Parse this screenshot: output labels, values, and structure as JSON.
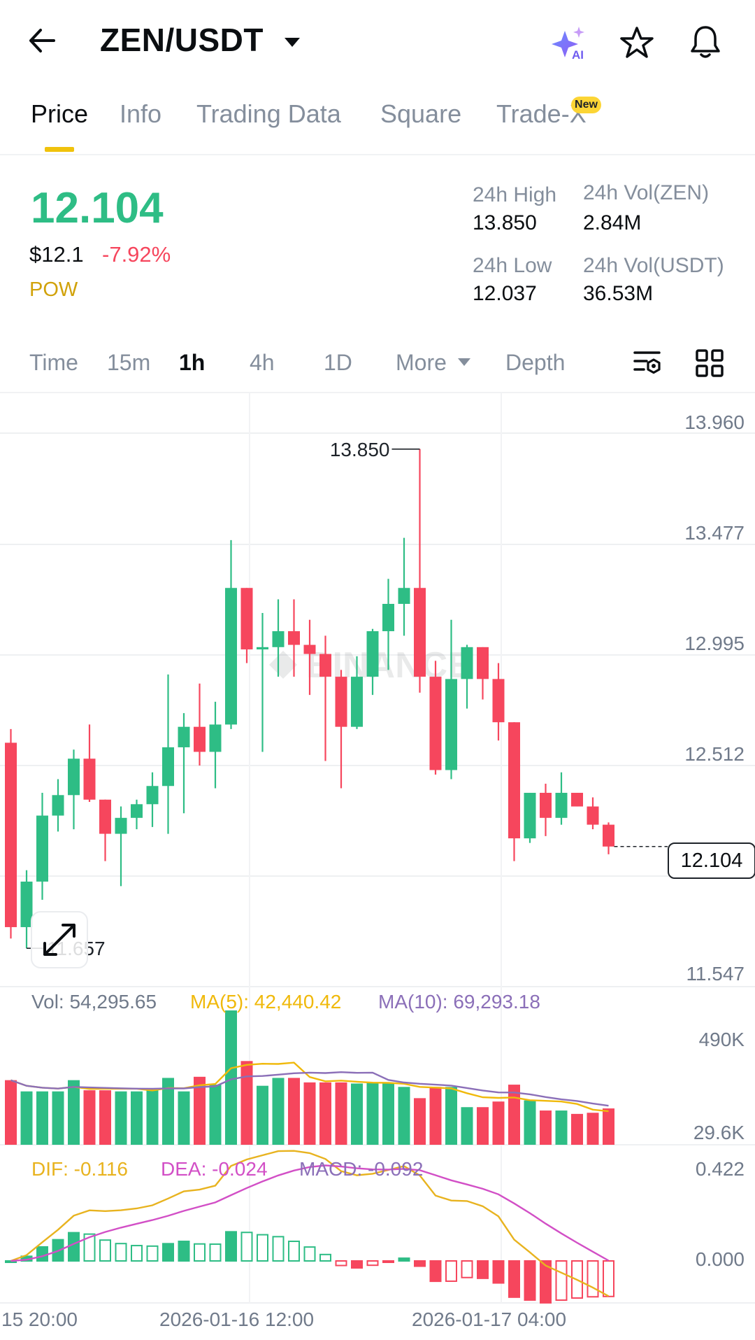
{
  "header": {
    "pair": "ZEN/USDT",
    "ai_badge": "AI"
  },
  "tabs": [
    {
      "label": "Price",
      "active": true
    },
    {
      "label": "Info",
      "active": false
    },
    {
      "label": "Trading Data",
      "active": false
    },
    {
      "label": "Square",
      "active": false
    },
    {
      "label": "Trade-X",
      "active": false,
      "badge": "New"
    }
  ],
  "ticker": {
    "last_price": "12.104",
    "usd_price": "$12.1",
    "change_pct": "-7.92%",
    "tag": "POW",
    "high_label": "24h High",
    "high_value": "13.850",
    "low_label": "24h Low",
    "low_value": "12.037",
    "vol_base_label": "24h Vol(ZEN)",
    "vol_base_value": "2.84M",
    "vol_quote_label": "24h Vol(USDT)",
    "vol_quote_value": "36.53M"
  },
  "intervals": [
    {
      "label": "Time",
      "active": false
    },
    {
      "label": "15m",
      "active": false
    },
    {
      "label": "1h",
      "active": true
    },
    {
      "label": "4h",
      "active": false
    },
    {
      "label": "1D",
      "active": false
    },
    {
      "label": "More",
      "active": false
    },
    {
      "label": "Depth",
      "active": false
    }
  ],
  "chart": {
    "price_axis": [
      "13.960",
      "13.477",
      "12.995",
      "12.512",
      "12.104",
      "11.547"
    ],
    "current_price_tag": "12.104",
    "high_marker": "13.850",
    "low_marker": "11.657",
    "watermark": "BINANCE",
    "volume_legend": {
      "vol": "Vol: 54,295.65",
      "ma5": "MA(5): 42,440.42",
      "ma10": "MA(10): 69,293.18"
    },
    "volume_axis": [
      "490K",
      "29.6K"
    ],
    "macd_legend": {
      "dif": "DIF: -0.116",
      "dea": "DEA: -0.024",
      "macd": "MACD: -0.092"
    },
    "macd_axis": [
      "0.422",
      "0.000"
    ],
    "time_axis": [
      "15 20:00",
      "2026-01-16 12:00",
      "2026-01-17 04:00"
    ],
    "colors": {
      "up": "#2ebd85",
      "down": "#f6465d",
      "ma5": "#f0b90b",
      "ma10": "#8b6fb8",
      "dif": "#e8b31f",
      "dea": "#d24fc6"
    }
  },
  "chart_data": {
    "type": "candlestick",
    "interval": "1h",
    "candles": [
      {
        "o": 12.56,
        "h": 12.62,
        "l": 11.7,
        "c": 11.75
      },
      {
        "o": 11.75,
        "h": 12.0,
        "l": 11.657,
        "c": 11.95
      },
      {
        "o": 11.95,
        "h": 12.34,
        "l": 11.87,
        "c": 12.24
      },
      {
        "o": 12.24,
        "h": 12.4,
        "l": 12.17,
        "c": 12.33
      },
      {
        "o": 12.33,
        "h": 12.53,
        "l": 12.18,
        "c": 12.49
      },
      {
        "o": 12.49,
        "h": 12.64,
        "l": 12.3,
        "c": 12.31
      },
      {
        "o": 12.31,
        "h": 12.31,
        "l": 12.04,
        "c": 12.16
      },
      {
        "o": 12.16,
        "h": 12.28,
        "l": 11.93,
        "c": 12.23
      },
      {
        "o": 12.23,
        "h": 12.31,
        "l": 12.18,
        "c": 12.29
      },
      {
        "o": 12.29,
        "h": 12.43,
        "l": 12.19,
        "c": 12.37
      },
      {
        "o": 12.37,
        "h": 12.86,
        "l": 12.16,
        "c": 12.54
      },
      {
        "o": 12.54,
        "h": 12.69,
        "l": 12.25,
        "c": 12.63
      },
      {
        "o": 12.63,
        "h": 12.82,
        "l": 12.46,
        "c": 12.52
      },
      {
        "o": 12.52,
        "h": 12.74,
        "l": 12.36,
        "c": 12.64
      },
      {
        "o": 12.64,
        "h": 13.45,
        "l": 12.62,
        "c": 13.24
      },
      {
        "o": 13.24,
        "h": 13.24,
        "l": 12.91,
        "c": 12.97
      },
      {
        "o": 12.97,
        "h": 13.13,
        "l": 12.52,
        "c": 12.98
      },
      {
        "o": 12.98,
        "h": 13.19,
        "l": 12.85,
        "c": 13.05
      },
      {
        "o": 13.05,
        "h": 13.19,
        "l": 12.85,
        "c": 12.99
      },
      {
        "o": 12.99,
        "h": 13.1,
        "l": 12.77,
        "c": 12.95
      },
      {
        "o": 12.95,
        "h": 13.03,
        "l": 12.48,
        "c": 12.85
      },
      {
        "o": 12.85,
        "h": 12.88,
        "l": 12.36,
        "c": 12.63
      },
      {
        "o": 12.63,
        "h": 12.94,
        "l": 12.62,
        "c": 12.85
      },
      {
        "o": 12.85,
        "h": 13.06,
        "l": 12.77,
        "c": 13.05
      },
      {
        "o": 13.05,
        "h": 13.28,
        "l": 12.88,
        "c": 13.17
      },
      {
        "o": 13.17,
        "h": 13.46,
        "l": 13.03,
        "c": 13.24
      },
      {
        "o": 13.24,
        "h": 13.85,
        "l": 12.78,
        "c": 12.85
      },
      {
        "o": 12.85,
        "h": 12.92,
        "l": 12.42,
        "c": 12.44
      },
      {
        "o": 12.44,
        "h": 13.1,
        "l": 12.4,
        "c": 12.84
      },
      {
        "o": 12.84,
        "h": 12.99,
        "l": 12.71,
        "c": 12.98
      },
      {
        "o": 12.98,
        "h": 12.98,
        "l": 12.75,
        "c": 12.84
      },
      {
        "o": 12.84,
        "h": 12.91,
        "l": 12.57,
        "c": 12.65
      },
      {
        "o": 12.65,
        "h": 12.65,
        "l": 12.04,
        "c": 12.14
      },
      {
        "o": 12.14,
        "h": 12.34,
        "l": 12.12,
        "c": 12.34
      },
      {
        "o": 12.34,
        "h": 12.38,
        "l": 12.15,
        "c": 12.23
      },
      {
        "o": 12.23,
        "h": 12.43,
        "l": 12.2,
        "c": 12.34
      },
      {
        "o": 12.34,
        "h": 12.34,
        "l": 12.28,
        "c": 12.28
      },
      {
        "o": 12.28,
        "h": 12.32,
        "l": 12.18,
        "c": 12.2
      },
      {
        "o": 12.2,
        "h": 12.21,
        "l": 12.07,
        "c": 12.104
      }
    ],
    "volume": [
      180000,
      130000,
      130000,
      130000,
      180000,
      135000,
      135000,
      130000,
      130000,
      140000,
      190000,
      130000,
      195000,
      160000,
      490000,
      265000,
      155000,
      190000,
      190000,
      170000,
      170000,
      170000,
      165000,
      170000,
      165000,
      150000,
      100000,
      150000,
      150000,
      60000,
      60000,
      85000,
      160000,
      90000,
      45000,
      45000,
      30000,
      35000,
      54295.65
    ],
    "ma5_volume": 42440.42,
    "ma10_volume": 69293.18,
    "macd": {
      "dif": -0.116,
      "dea": -0.024,
      "macd": -0.092
    },
    "price_range": [
      11.547,
      13.96
    ],
    "volume_range": [
      29600,
      490000
    ],
    "macd_range": [
      -0.2,
      0.422
    ],
    "grid": true
  }
}
